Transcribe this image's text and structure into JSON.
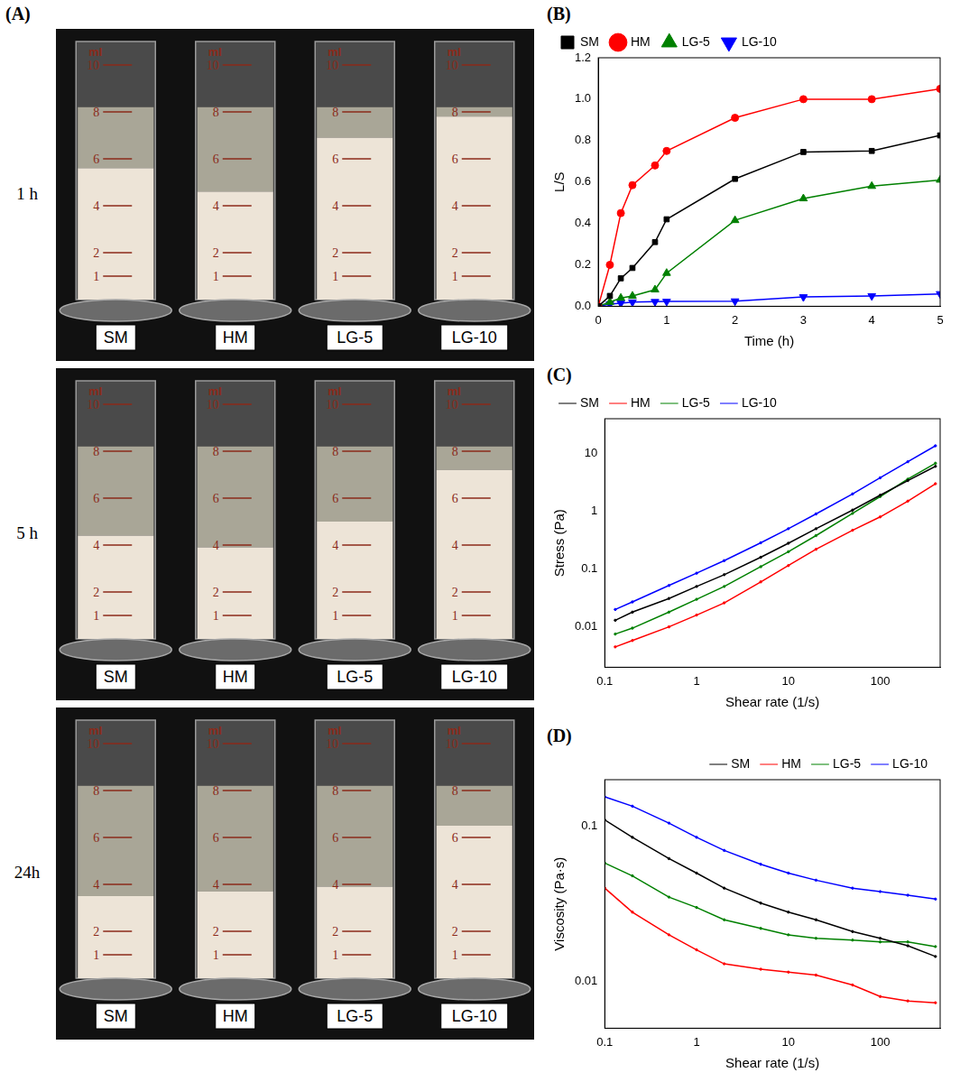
{
  "figure_a": {
    "panel": "(A)",
    "scale_title": "ml",
    "scale_labels": [
      1,
      2,
      4,
      6,
      8,
      10
    ],
    "ylim": [
      0,
      11
    ],
    "rows": [
      {
        "time": "1 h",
        "liquid_level": 8.2,
        "samples": [
          {
            "name": "SM",
            "sediment": 5.6
          },
          {
            "name": "HM",
            "sediment": 4.6
          },
          {
            "name": "LG-5",
            "sediment": 6.9
          },
          {
            "name": "LG-10",
            "sediment": 7.8
          }
        ]
      },
      {
        "time": "5 h",
        "liquid_level": 8.2,
        "samples": [
          {
            "name": "SM",
            "sediment": 4.4
          },
          {
            "name": "HM",
            "sediment": 3.9
          },
          {
            "name": "LG-5",
            "sediment": 5.0
          },
          {
            "name": "LG-10",
            "sediment": 7.2
          }
        ]
      },
      {
        "time": "24h",
        "liquid_level": 8.2,
        "samples": [
          {
            "name": "SM",
            "sediment": 3.5
          },
          {
            "name": "HM",
            "sediment": 3.7
          },
          {
            "name": "LG-5",
            "sediment": 3.9
          },
          {
            "name": "LG-10",
            "sediment": 6.5
          }
        ]
      }
    ]
  },
  "chart_data": [
    {
      "panel": "(B)",
      "type": "line",
      "x_label": "Time (h)",
      "y_label": "L/S",
      "legend": "top-left",
      "grid": false,
      "x": [
        0,
        0.17,
        0.33,
        0.5,
        0.83,
        1,
        2,
        3,
        4,
        5
      ],
      "xlim": [
        0,
        5
      ],
      "xticks": [
        0,
        1,
        2,
        3,
        4,
        5
      ],
      "ylim": [
        0,
        1.2
      ],
      "yticks": [
        {
          "value": 0,
          "label": "0.0"
        },
        {
          "value": 0.2,
          "label": "0.2"
        },
        {
          "value": 0.4,
          "label": "0.4"
        },
        {
          "value": 0.6,
          "label": "0.6"
        },
        {
          "value": 0.8,
          "label": "0.8"
        },
        {
          "value": 1,
          "label": "1.0"
        },
        {
          "value": 1.2,
          "label": "1.2"
        }
      ],
      "series": [
        {
          "name": "SM",
          "color": "#000000",
          "marker": "square",
          "values": [
            0,
            0.05,
            0.135,
            0.185,
            0.31,
            0.42,
            0.615,
            0.745,
            0.75,
            0.825
          ]
        },
        {
          "name": "HM",
          "color": "#ff0000",
          "marker": "circle",
          "values": [
            0,
            0.2,
            0.45,
            0.585,
            0.68,
            0.75,
            0.91,
            1.0,
            1.0,
            1.05
          ]
        },
        {
          "name": "LG-5",
          "color": "#008000",
          "marker": "triangle-up",
          "values": [
            0,
            0.02,
            0.04,
            0.05,
            0.08,
            0.16,
            0.415,
            0.52,
            0.58,
            0.61
          ]
        },
        {
          "name": "LG-10",
          "color": "#0000ff",
          "marker": "triangle-down",
          "values": [
            0,
            0.01,
            0.015,
            0.02,
            0.022,
            0.023,
            0.025,
            0.045,
            0.05,
            0.06
          ]
        }
      ]
    },
    {
      "panel": "(C)",
      "type": "line",
      "x_label": "Shear rate (1/s)",
      "y_label": "Stress (Pa)",
      "legend": "top-left",
      "grid": false,
      "log": true,
      "x": [
        0.13,
        0.2,
        0.5,
        1,
        2,
        5,
        10,
        20,
        50,
        100,
        200,
        400
      ],
      "xlim": [
        0.1,
        450
      ],
      "xticks": [
        0.1,
        1,
        10,
        100
      ],
      "ylim": [
        0.002,
        40
      ],
      "yticks": [
        0.01,
        0.1,
        1,
        10
      ],
      "series": [
        {
          "name": "SM",
          "color": "#000000",
          "marker": "dot",
          "values": [
            0.013,
            0.018,
            0.031,
            0.05,
            0.08,
            0.16,
            0.28,
            0.5,
            1.05,
            1.9,
            3.4,
            6
          ]
        },
        {
          "name": "HM",
          "color": "#ff0000",
          "marker": "dot",
          "values": [
            0.0045,
            0.0058,
            0.01,
            0.016,
            0.026,
            0.06,
            0.115,
            0.22,
            0.47,
            0.8,
            1.5,
            3
          ]
        },
        {
          "name": "LG-5",
          "color": "#008000",
          "marker": "dot",
          "values": [
            0.0075,
            0.0095,
            0.018,
            0.03,
            0.05,
            0.11,
            0.2,
            0.38,
            0.92,
            1.8,
            3.6,
            6.8
          ]
        },
        {
          "name": "LG-10",
          "color": "#0000ff",
          "marker": "dot",
          "values": [
            0.02,
            0.027,
            0.052,
            0.085,
            0.14,
            0.285,
            0.5,
            0.9,
            2,
            3.8,
            7.2,
            13.6
          ]
        }
      ]
    },
    {
      "panel": "(D)",
      "type": "line",
      "x_label": "Shear rate (1/s)",
      "y_label": "Viscosity (Pa·s)",
      "legend": "top-right",
      "grid": false,
      "log": true,
      "x": [
        0.1,
        0.2,
        0.5,
        1,
        2,
        5,
        10,
        20,
        50,
        100,
        200,
        400
      ],
      "xlim": [
        0.1,
        450
      ],
      "xticks": [
        0.1,
        1,
        10,
        100
      ],
      "ylim": [
        0.005,
        0.2
      ],
      "yticks": [
        0.01,
        0.1
      ],
      "series": [
        {
          "name": "SM",
          "color": "#000000",
          "marker": "dot",
          "values": [
            0.11,
            0.085,
            0.062,
            0.05,
            0.04,
            0.032,
            0.028,
            0.025,
            0.021,
            0.019,
            0.017,
            0.0145
          ]
        },
        {
          "name": "HM",
          "color": "#ff0000",
          "marker": "dot",
          "values": [
            0.04,
            0.028,
            0.02,
            0.016,
            0.013,
            0.012,
            0.0115,
            0.011,
            0.0095,
            0.008,
            0.0075,
            0.0073
          ]
        },
        {
          "name": "LG-5",
          "color": "#008000",
          "marker": "dot",
          "values": [
            0.058,
            0.048,
            0.035,
            0.03,
            0.025,
            0.022,
            0.02,
            0.019,
            0.0185,
            0.018,
            0.018,
            0.0168
          ]
        },
        {
          "name": "LG-10",
          "color": "#0000ff",
          "marker": "dot",
          "values": [
            0.155,
            0.135,
            0.105,
            0.085,
            0.07,
            0.057,
            0.05,
            0.045,
            0.04,
            0.038,
            0.036,
            0.034
          ]
        }
      ]
    }
  ]
}
